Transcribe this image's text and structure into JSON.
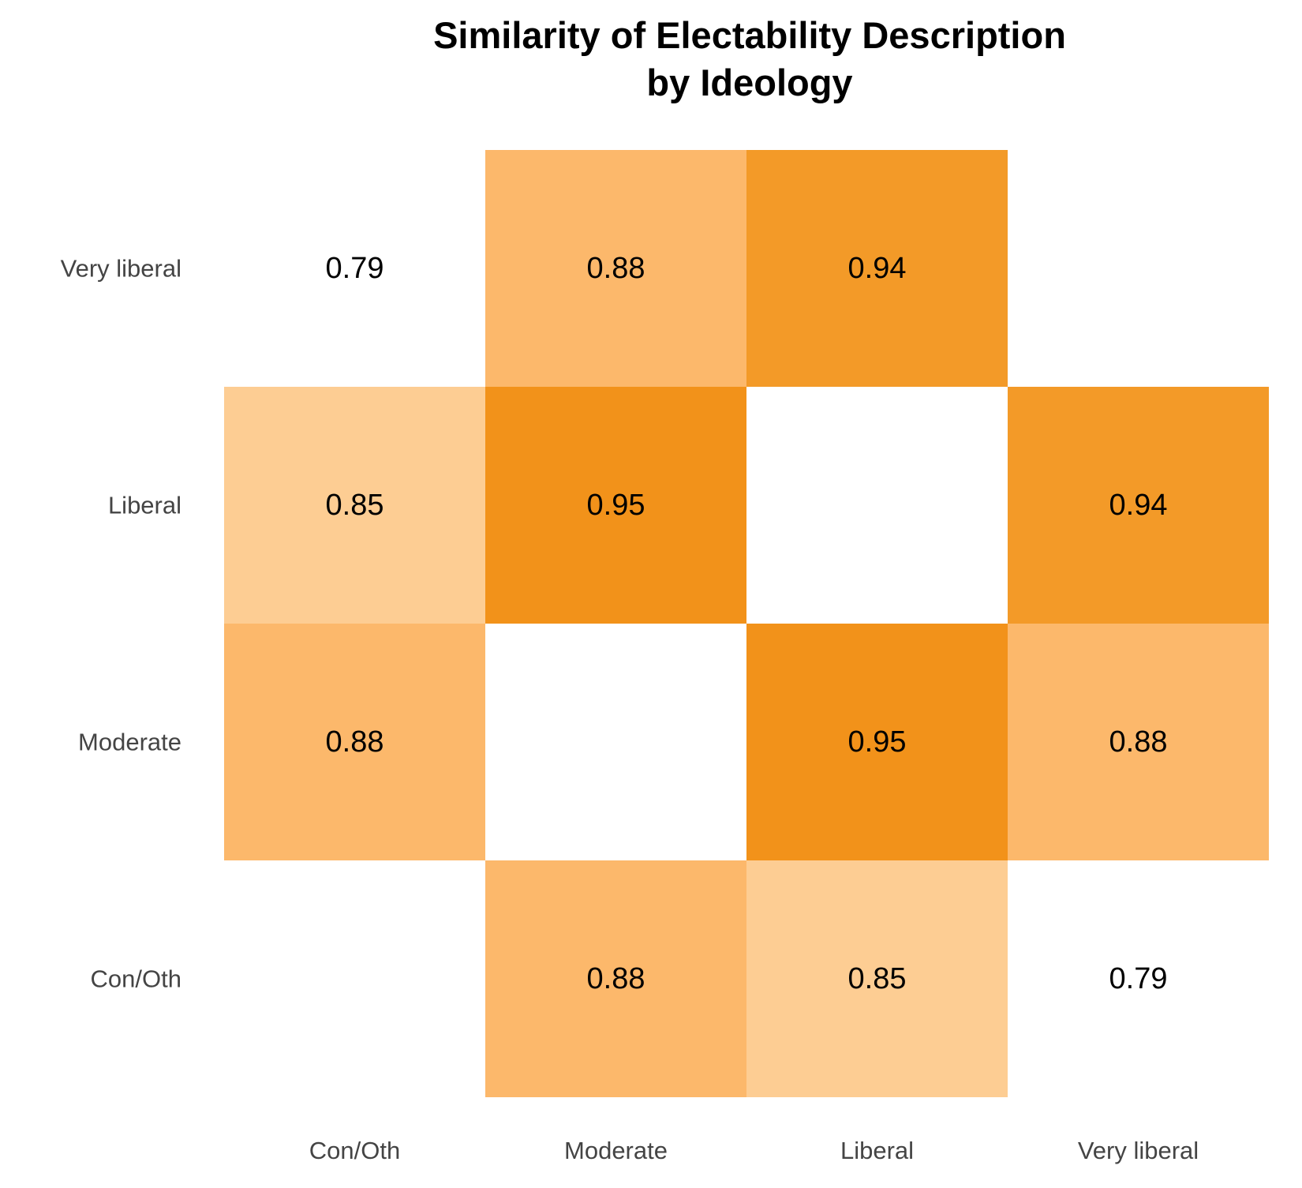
{
  "chart_data": {
    "type": "heatmap",
    "title_lines": [
      "Similarity of Electability Description",
      "by Ideology"
    ],
    "xlabel": "",
    "ylabel": "",
    "x_categories": [
      "Con/Oth",
      "Moderate",
      "Liberal",
      "Very liberal"
    ],
    "y_categories": [
      "Con/Oth",
      "Moderate",
      "Liberal",
      "Very liberal"
    ],
    "cells": [
      {
        "x": "Moderate",
        "y": "Con/Oth",
        "value": 0.88,
        "label": "0.88"
      },
      {
        "x": "Liberal",
        "y": "Con/Oth",
        "value": 0.85,
        "label": "0.85"
      },
      {
        "x": "Very liberal",
        "y": "Con/Oth",
        "value": 0.79,
        "label": "0.79"
      },
      {
        "x": "Con/Oth",
        "y": "Moderate",
        "value": 0.88,
        "label": "0.88"
      },
      {
        "x": "Liberal",
        "y": "Moderate",
        "value": 0.95,
        "label": "0.95"
      },
      {
        "x": "Very liberal",
        "y": "Moderate",
        "value": 0.88,
        "label": "0.88"
      },
      {
        "x": "Con/Oth",
        "y": "Liberal",
        "value": 0.85,
        "label": "0.85"
      },
      {
        "x": "Moderate",
        "y": "Liberal",
        "value": 0.95,
        "label": "0.95"
      },
      {
        "x": "Very liberal",
        "y": "Liberal",
        "value": 0.94,
        "label": "0.94"
      },
      {
        "x": "Con/Oth",
        "y": "Very liberal",
        "value": 0.79,
        "label": "0.79"
      },
      {
        "x": "Moderate",
        "y": "Very liberal",
        "value": 0.88,
        "label": "0.88"
      },
      {
        "x": "Liberal",
        "y": "Very liberal",
        "value": 0.94,
        "label": "0.94"
      }
    ],
    "color_scale": {
      "domain": [
        0.79,
        0.85,
        0.88,
        0.94,
        0.95
      ],
      "colors": [
        "#ffffff",
        "#fdcd93",
        "#fcb86b",
        "#f39a28",
        "#f2921a"
      ]
    },
    "grid": false,
    "legend": "none"
  }
}
